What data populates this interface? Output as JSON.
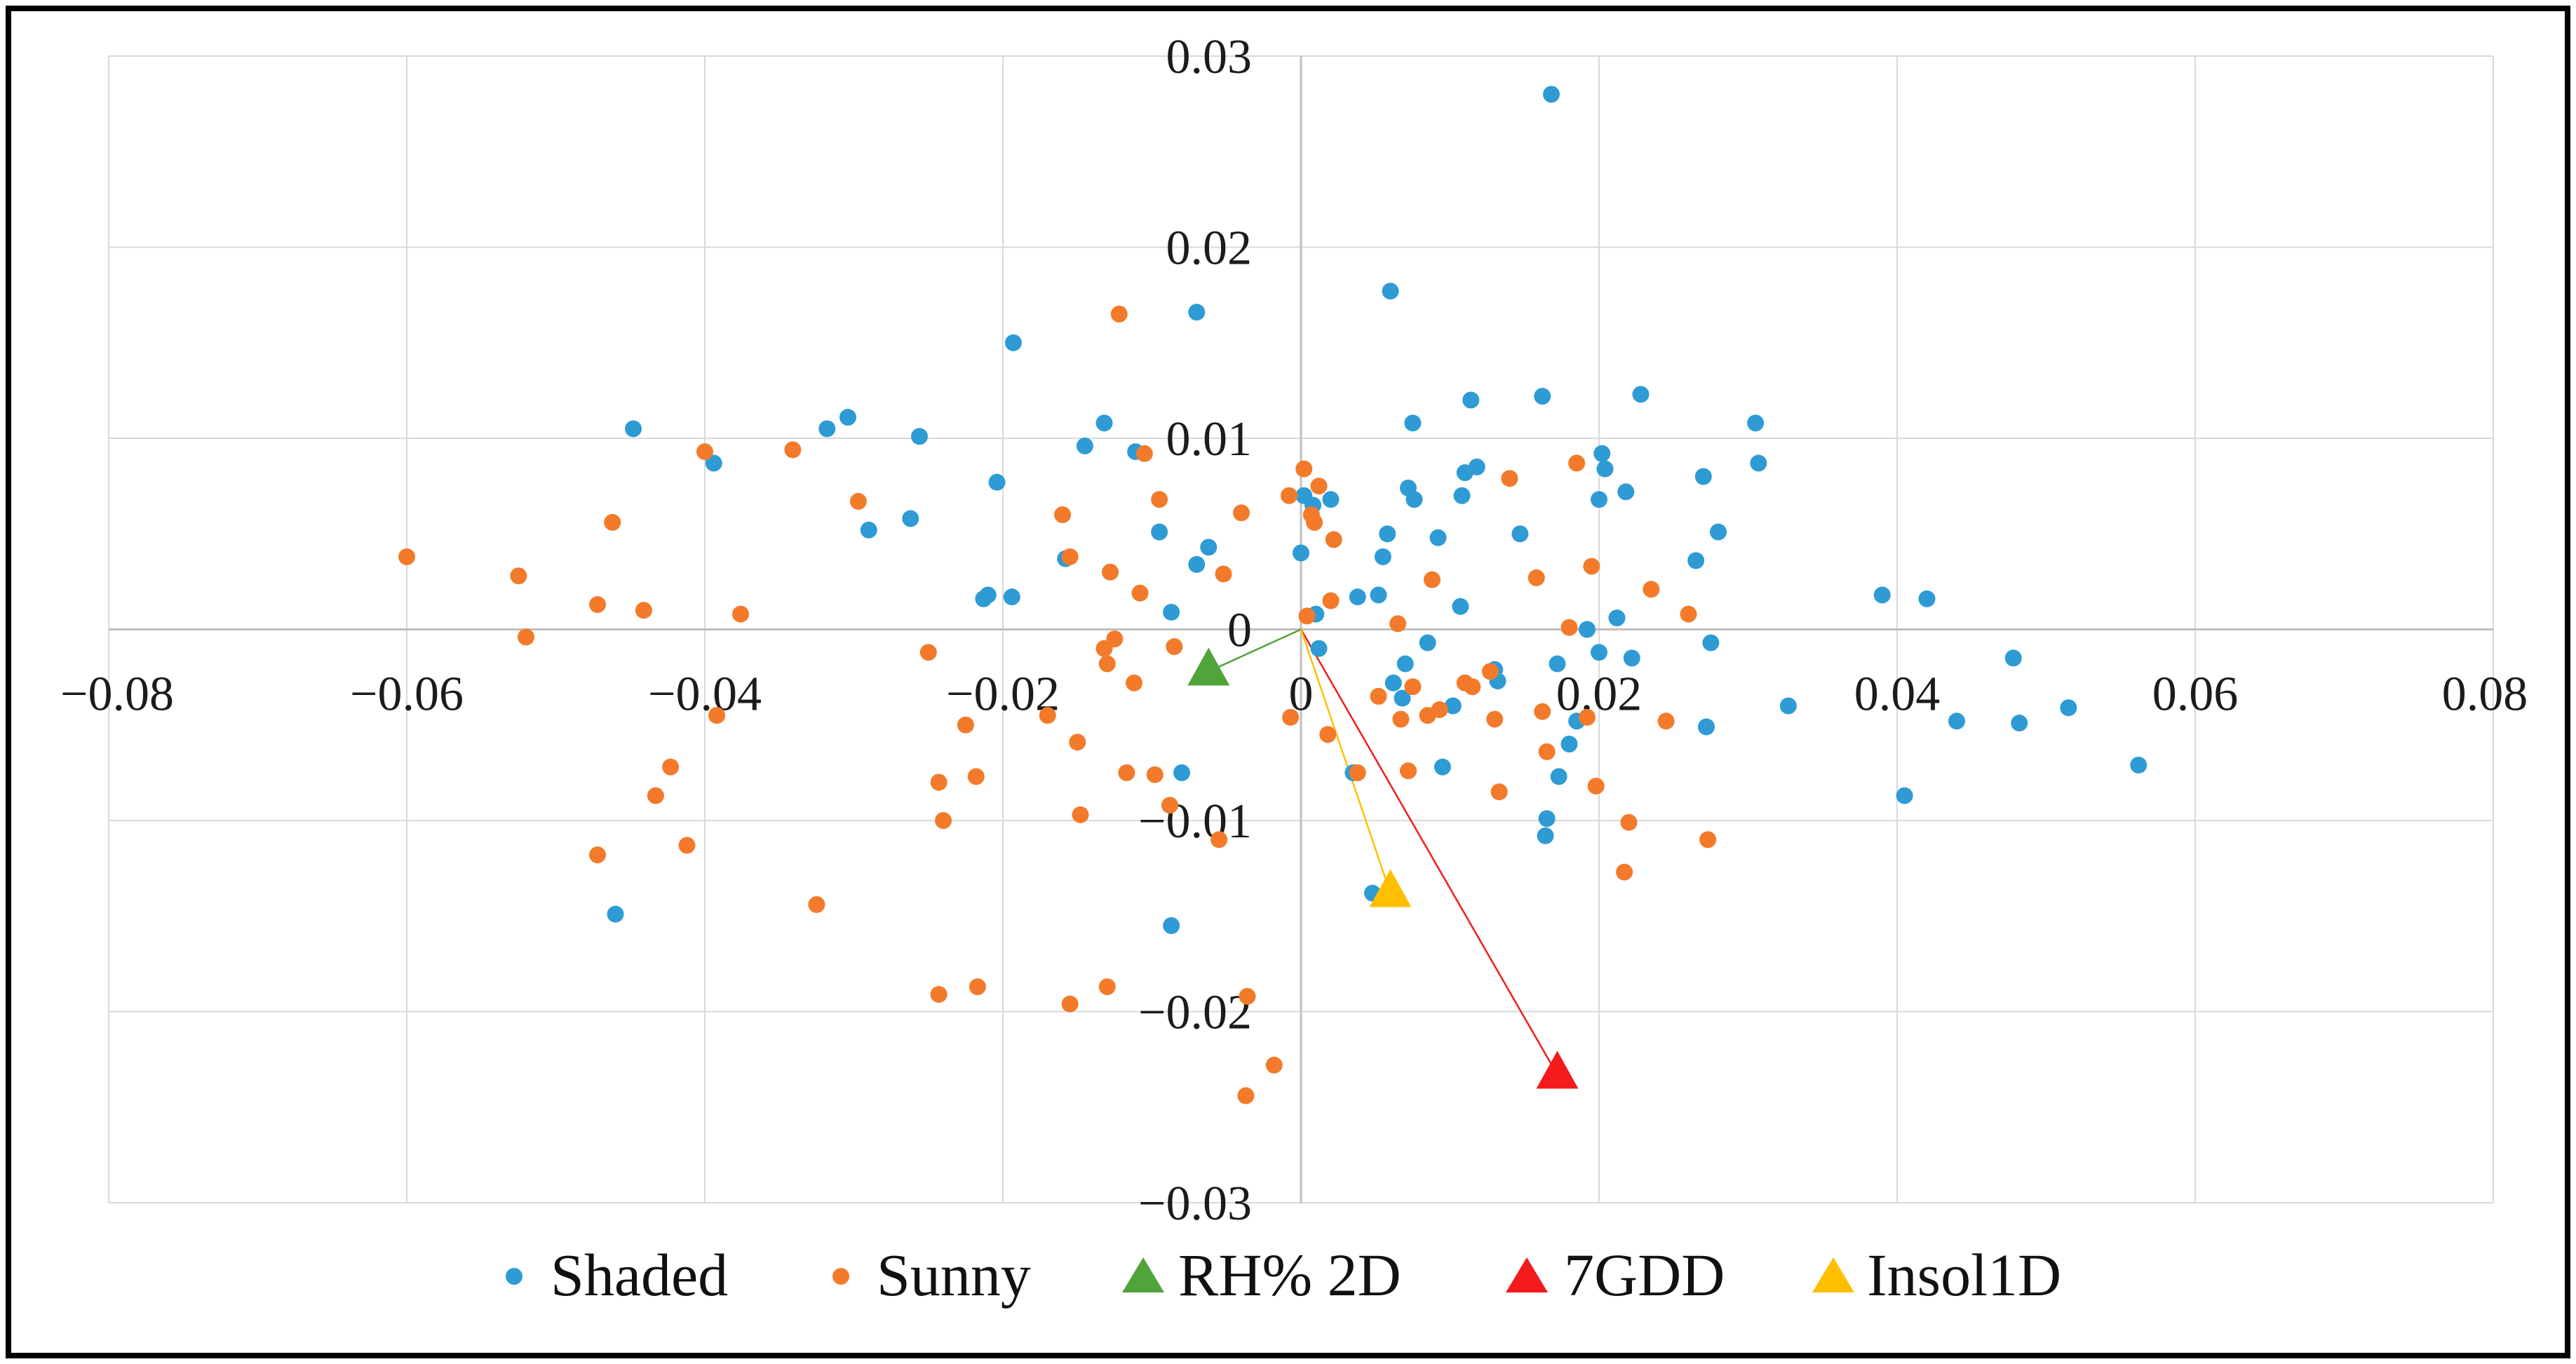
{
  "chart_data": {
    "type": "scatter",
    "title": "",
    "xlabel": "",
    "ylabel": "",
    "xlim": [
      -0.08,
      0.08
    ],
    "ylim": [
      -0.03,
      0.03
    ],
    "grid": true,
    "legend_position": "bottom",
    "x_ticks": [
      "−0.08",
      "−0.06",
      "−0.04",
      "−0.02",
      "0",
      "0.02",
      "0.04",
      "0.06",
      "0.08"
    ],
    "y_ticks": [
      "0.03",
      "0.02",
      "0.01",
      "0",
      "−0.01",
      "−0.02",
      "−0.03"
    ],
    "colors": {
      "shaded": "#2e9bd5",
      "sunny": "#f37a2a",
      "rh": "#4fa43a",
      "gdd": "#f31b1b",
      "insol": "#ffbf00"
    },
    "series": [
      {
        "name": "Shaded",
        "points": [
          [
            -0.0448,
            0.0105
          ],
          [
            -0.0394,
            0.0087
          ],
          [
            -0.0318,
            0.0105
          ],
          [
            -0.0304,
            0.0111
          ],
          [
            -0.029,
            0.0052
          ],
          [
            -0.0256,
            0.0101
          ],
          [
            -0.0262,
            0.0058
          ],
          [
            -0.0193,
            0.015
          ],
          [
            -0.0204,
            0.0077
          ],
          [
            -0.021,
            0.0018
          ],
          [
            -0.0213,
            0.0016
          ],
          [
            -0.0194,
            0.0017
          ],
          [
            -0.0158,
            0.0037
          ],
          [
            -0.0145,
            0.0096
          ],
          [
            -0.0132,
            0.0108
          ],
          [
            -0.0111,
            0.0093
          ],
          [
            -0.007,
            0.0166
          ],
          [
            -0.007,
            0.0034
          ],
          [
            -0.0062,
            0.0043
          ],
          [
            -0.0095,
            0.0051
          ],
          [
            -0.0087,
            0.0009
          ],
          [
            -0.008,
            -0.0075
          ],
          [
            -0.0087,
            -0.0155
          ],
          [
            -0.046,
            -0.0149
          ],
          [
            0.0,
            0.004
          ],
          [
            0.0002,
            0.007
          ],
          [
            0.0008,
            0.0065
          ],
          [
            0.001,
            0.0008
          ],
          [
            0.0012,
            -0.001
          ],
          [
            0.002,
            0.0068
          ],
          [
            0.0038,
            0.0017
          ],
          [
            0.0052,
            0.0018
          ],
          [
            0.0055,
            0.0038
          ],
          [
            0.0058,
            0.005
          ],
          [
            0.0062,
            -0.0028
          ],
          [
            0.0068,
            -0.0036
          ],
          [
            0.007,
            -0.0018
          ],
          [
            0.0072,
            0.0074
          ],
          [
            0.0075,
            0.0108
          ],
          [
            0.0076,
            0.0068
          ],
          [
            0.0085,
            -0.0007
          ],
          [
            0.0092,
            0.0048
          ],
          [
            0.0095,
            -0.0072
          ],
          [
            0.0102,
            -0.004
          ],
          [
            0.0107,
            0.0012
          ],
          [
            0.0108,
            0.007
          ],
          [
            0.011,
            0.0082
          ],
          [
            0.0114,
            0.012
          ],
          [
            0.0118,
            0.0085
          ],
          [
            0.013,
            -0.0021
          ],
          [
            0.0132,
            -0.0027
          ],
          [
            0.0147,
            0.005
          ],
          [
            0.0162,
            0.0122
          ],
          [
            0.0165,
            -0.0099
          ],
          [
            0.0164,
            -0.0108
          ],
          [
            0.0172,
            -0.0018
          ],
          [
            0.0173,
            -0.0077
          ],
          [
            0.018,
            -0.006
          ],
          [
            0.0185,
            -0.0048
          ],
          [
            0.0192,
            0.0
          ],
          [
            0.02,
            -0.0012
          ],
          [
            0.02,
            0.0068
          ],
          [
            0.0202,
            0.0092
          ],
          [
            0.0204,
            0.0084
          ],
          [
            0.0212,
            0.0006
          ],
          [
            0.0218,
            0.0072
          ],
          [
            0.0222,
            -0.0015
          ],
          [
            0.0228,
            0.0123
          ],
          [
            0.006,
            0.0177
          ],
          [
            0.0048,
            -0.0138
          ],
          [
            0.0035,
            -0.0075
          ],
          [
            0.0265,
            0.0036
          ],
          [
            0.027,
            0.008
          ],
          [
            0.0275,
            -0.0007
          ],
          [
            0.0272,
            -0.0051
          ],
          [
            0.028,
            0.0051
          ],
          [
            0.0305,
            0.0108
          ],
          [
            0.0307,
            0.0087
          ],
          [
            0.0327,
            -0.004
          ],
          [
            0.039,
            0.0018
          ],
          [
            0.0405,
            -0.0087
          ],
          [
            0.042,
            0.0016
          ],
          [
            0.044,
            -0.0048
          ],
          [
            0.0478,
            -0.0015
          ],
          [
            0.0482,
            -0.0049
          ],
          [
            0.0515,
            -0.0041
          ],
          [
            0.0562,
            -0.0071
          ],
          [
            0.0168,
            0.028
          ]
        ]
      },
      {
        "name": "Sunny",
        "points": [
          [
            -0.06,
            0.0038
          ],
          [
            -0.0525,
            0.0028
          ],
          [
            -0.052,
            -0.0004
          ],
          [
            -0.0472,
            0.0013
          ],
          [
            -0.0462,
            0.0056
          ],
          [
            -0.0472,
            -0.0118
          ],
          [
            -0.0441,
            0.001
          ],
          [
            -0.0433,
            -0.0087
          ],
          [
            -0.0423,
            -0.0072
          ],
          [
            -0.04,
            0.0093
          ],
          [
            -0.0392,
            -0.0045
          ],
          [
            -0.0412,
            -0.0113
          ],
          [
            -0.0376,
            0.0008
          ],
          [
            -0.0341,
            0.0094
          ],
          [
            -0.0325,
            -0.0144
          ],
          [
            -0.0297,
            0.0067
          ],
          [
            -0.025,
            -0.0012
          ],
          [
            -0.0243,
            -0.008
          ],
          [
            -0.024,
            -0.01
          ],
          [
            -0.0225,
            -0.005
          ],
          [
            -0.0218,
            -0.0077
          ],
          [
            -0.0243,
            -0.0191
          ],
          [
            -0.0217,
            -0.0187
          ],
          [
            -0.017,
            -0.0045
          ],
          [
            -0.016,
            0.006
          ],
          [
            -0.0155,
            0.0038
          ],
          [
            -0.015,
            -0.0059
          ],
          [
            -0.0148,
            -0.0097
          ],
          [
            -0.0155,
            -0.0196
          ],
          [
            -0.0132,
            -0.001
          ],
          [
            -0.013,
            -0.0018
          ],
          [
            -0.0128,
            0.003
          ],
          [
            -0.0125,
            -0.0005
          ],
          [
            -0.0122,
            0.0165
          ],
          [
            -0.0117,
            -0.0075
          ],
          [
            -0.0112,
            -0.0028
          ],
          [
            -0.0108,
            0.0019
          ],
          [
            -0.0105,
            0.0092
          ],
          [
            -0.0095,
            0.0068
          ],
          [
            -0.0098,
            -0.0076
          ],
          [
            -0.0088,
            -0.0092
          ],
          [
            -0.0085,
            -0.0009
          ],
          [
            -0.0055,
            -0.011
          ],
          [
            -0.0052,
            0.0029
          ],
          [
            -0.004,
            0.0061
          ],
          [
            -0.0036,
            -0.0192
          ],
          [
            -0.0037,
            -0.0244
          ],
          [
            -0.0018,
            -0.0228
          ],
          [
            -0.0008,
            0.007
          ],
          [
            -0.0007,
            -0.0046
          ],
          [
            0.0002,
            0.0084
          ],
          [
            0.0004,
            0.0007
          ],
          [
            0.0007,
            0.006
          ],
          [
            0.0009,
            0.0056
          ],
          [
            0.0012,
            0.0075
          ],
          [
            0.0018,
            -0.0055
          ],
          [
            0.002,
            0.0015
          ],
          [
            0.0022,
            0.0047
          ],
          [
            0.0038,
            -0.0075
          ],
          [
            0.0052,
            -0.0035
          ],
          [
            0.0065,
            0.0003
          ],
          [
            0.0067,
            -0.0047
          ],
          [
            0.0072,
            -0.0074
          ],
          [
            0.0075,
            -0.003
          ],
          [
            0.0085,
            -0.0045
          ],
          [
            0.0088,
            0.0026
          ],
          [
            0.0093,
            -0.0042
          ],
          [
            0.011,
            -0.0028
          ],
          [
            0.0115,
            -0.003
          ],
          [
            0.0127,
            -0.0022
          ],
          [
            0.013,
            -0.0047
          ],
          [
            0.0133,
            -0.0085
          ],
          [
            0.014,
            0.0079
          ],
          [
            0.0158,
            0.0027
          ],
          [
            0.0162,
            -0.0043
          ],
          [
            0.0165,
            -0.0064
          ],
          [
            0.018,
            0.0001
          ],
          [
            0.0185,
            0.0087
          ],
          [
            0.0192,
            -0.0046
          ],
          [
            0.0195,
            0.0033
          ],
          [
            0.0198,
            -0.0082
          ],
          [
            0.0217,
            -0.0127
          ],
          [
            0.022,
            -0.0101
          ],
          [
            0.0235,
            0.0021
          ],
          [
            0.0245,
            -0.0048
          ],
          [
            0.026,
            0.0008
          ],
          [
            0.0273,
            -0.011
          ],
          [
            -0.013,
            -0.0187
          ]
        ]
      }
    ],
    "vectors": [
      {
        "name": "RH% 2D",
        "x": -0.0062,
        "y": -0.0022
      },
      {
        "name": "7GDD",
        "x": 0.0172,
        "y": -0.0233
      },
      {
        "name": "Insol1D",
        "x": 0.006,
        "y": -0.0138
      }
    ]
  }
}
